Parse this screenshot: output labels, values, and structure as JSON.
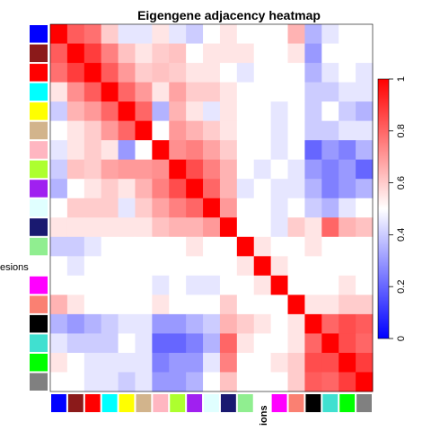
{
  "chart_data": {
    "type": "heatmap",
    "title": "Eigengene adjacency heatmap",
    "row_label_text": "esions",
    "col_label_text": "ions",
    "modules": [
      "blue",
      "brown",
      "red",
      "cyan",
      "yellow",
      "tan",
      "pink",
      "greenyellow",
      "purple",
      "lightcyan",
      "midnightblue",
      "lightgreen",
      "white",
      "magenta",
      "salmon",
      "black",
      "turquoise",
      "green",
      "grey"
    ],
    "module_colors": [
      "#0000ff",
      "#8b1a1a",
      "#ff0000",
      "#00ffff",
      "#ffff00",
      "#d2b48c",
      "#ffb6c1",
      "#adff2f",
      "#a020f0",
      "#e0ffff",
      "#191970",
      "#90ee90",
      "#ffffff",
      "#ff00ff",
      "#fa8072",
      "#000000",
      "#40e0d0",
      "#00ff00",
      "#808080"
    ],
    "colorscale": {
      "min": 0,
      "max": 1,
      "low": "#0000ff",
      "mid": "#ffffff",
      "high": "#ff0000"
    },
    "colorbar_ticks": [
      "0",
      "0.2",
      "0.4",
      "0.6",
      "0.8",
      "1"
    ],
    "values": [
      [
        1.0,
        0.82,
        0.78,
        0.6,
        0.45,
        0.45,
        0.55,
        0.45,
        0.4,
        0.5,
        0.55,
        0.5,
        0.5,
        0.5,
        0.65,
        0.35,
        0.45,
        0.5,
        0.5
      ],
      [
        0.82,
        1.0,
        0.88,
        0.75,
        0.62,
        0.55,
        0.6,
        0.62,
        0.5,
        0.55,
        0.55,
        0.55,
        0.5,
        0.5,
        0.55,
        0.3,
        0.5,
        0.5,
        0.5
      ],
      [
        0.78,
        0.88,
        1.0,
        0.82,
        0.7,
        0.6,
        0.62,
        0.6,
        0.55,
        0.55,
        0.5,
        0.45,
        0.5,
        0.5,
        0.5,
        0.35,
        0.45,
        0.5,
        0.45
      ],
      [
        0.55,
        0.72,
        0.82,
        1.0,
        0.8,
        0.7,
        0.55,
        0.68,
        0.6,
        0.6,
        0.55,
        0.5,
        0.5,
        0.5,
        0.5,
        0.4,
        0.4,
        0.45,
        0.45
      ],
      [
        0.4,
        0.65,
        0.7,
        0.8,
        1.0,
        0.8,
        0.35,
        0.65,
        0.55,
        0.45,
        0.55,
        0.5,
        0.5,
        0.45,
        0.5,
        0.4,
        0.5,
        0.4,
        0.35
      ],
      [
        0.5,
        0.55,
        0.6,
        0.7,
        0.8,
        1.0,
        0.5,
        0.7,
        0.65,
        0.6,
        0.55,
        0.5,
        0.5,
        0.45,
        0.5,
        0.4,
        0.4,
        0.45,
        0.45
      ],
      [
        0.45,
        0.55,
        0.6,
        0.55,
        0.3,
        0.5,
        1.0,
        0.72,
        0.75,
        0.68,
        0.6,
        0.5,
        0.5,
        0.45,
        0.5,
        0.2,
        0.3,
        0.25,
        0.35
      ],
      [
        0.4,
        0.62,
        0.6,
        0.68,
        0.7,
        0.7,
        0.72,
        1.0,
        0.85,
        0.75,
        0.65,
        0.5,
        0.45,
        0.5,
        0.45,
        0.3,
        0.25,
        0.3,
        0.2
      ],
      [
        0.35,
        0.5,
        0.55,
        0.6,
        0.55,
        0.65,
        0.75,
        0.85,
        1.0,
        0.8,
        0.65,
        0.45,
        0.5,
        0.45,
        0.45,
        0.35,
        0.25,
        0.3,
        0.35
      ],
      [
        0.5,
        0.6,
        0.6,
        0.6,
        0.45,
        0.6,
        0.68,
        0.75,
        0.8,
        1.0,
        0.7,
        0.5,
        0.5,
        0.45,
        0.5,
        0.4,
        0.35,
        0.45,
        0.5
      ],
      [
        0.55,
        0.55,
        0.55,
        0.55,
        0.55,
        0.55,
        0.62,
        0.65,
        0.65,
        0.7,
        1.0,
        0.5,
        0.5,
        0.45,
        0.6,
        0.55,
        0.8,
        0.65,
        0.62
      ],
      [
        0.4,
        0.4,
        0.45,
        0.5,
        0.5,
        0.5,
        0.5,
        0.5,
        0.55,
        0.5,
        0.5,
        1.0,
        0.55,
        0.5,
        0.5,
        0.55,
        0.5,
        0.5,
        0.5
      ],
      [
        0.5,
        0.45,
        0.5,
        0.5,
        0.5,
        0.5,
        0.5,
        0.5,
        0.5,
        0.5,
        0.5,
        0.55,
        1.0,
        0.55,
        0.5,
        0.5,
        0.5,
        0.5,
        0.5
      ],
      [
        0.5,
        0.5,
        0.5,
        0.5,
        0.5,
        0.5,
        0.45,
        0.5,
        0.45,
        0.45,
        0.5,
        0.5,
        0.55,
        1.0,
        0.5,
        0.5,
        0.5,
        0.55,
        0.5
      ],
      [
        0.65,
        0.55,
        0.5,
        0.5,
        0.5,
        0.5,
        0.55,
        0.5,
        0.5,
        0.5,
        0.6,
        0.5,
        0.5,
        0.5,
        1.0,
        0.55,
        0.55,
        0.6,
        0.6
      ],
      [
        0.35,
        0.3,
        0.35,
        0.4,
        0.45,
        0.45,
        0.3,
        0.3,
        0.35,
        0.4,
        0.65,
        0.6,
        0.55,
        0.5,
        0.55,
        1.0,
        0.8,
        0.85,
        0.82
      ],
      [
        0.45,
        0.4,
        0.4,
        0.4,
        0.5,
        0.45,
        0.2,
        0.2,
        0.25,
        0.35,
        0.8,
        0.55,
        0.5,
        0.5,
        0.55,
        0.8,
        1.0,
        0.85,
        0.8
      ],
      [
        0.55,
        0.5,
        0.45,
        0.45,
        0.45,
        0.45,
        0.25,
        0.3,
        0.3,
        0.45,
        0.75,
        0.5,
        0.5,
        0.55,
        0.6,
        0.85,
        0.85,
        1.0,
        0.88
      ],
      [
        0.5,
        0.5,
        0.45,
        0.45,
        0.4,
        0.45,
        0.3,
        0.3,
        0.35,
        0.5,
        0.62,
        0.5,
        0.5,
        0.5,
        0.6,
        0.82,
        0.8,
        0.88,
        1.0
      ]
    ]
  }
}
